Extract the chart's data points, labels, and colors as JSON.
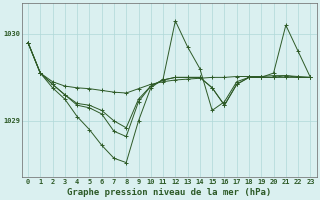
{
  "xlabel": "Graphe pression niveau de la mer (hPa)",
  "x_values": [
    0,
    1,
    2,
    3,
    4,
    5,
    6,
    7,
    8,
    9,
    10,
    11,
    12,
    13,
    14,
    15,
    16,
    17,
    18,
    19,
    20,
    21,
    22,
    23
  ],
  "series": [
    [
      1029.9,
      1029.55,
      1029.45,
      1029.4,
      1029.38,
      1029.37,
      1029.35,
      1029.33,
      1029.32,
      1029.37,
      1029.42,
      1029.45,
      1029.47,
      1029.48,
      1029.49,
      1029.5,
      1029.5,
      1029.51,
      1029.51,
      1029.51,
      1029.52,
      1029.52,
      1029.51,
      1029.5
    ],
    [
      1029.9,
      1029.55,
      1029.38,
      1029.25,
      1029.05,
      1028.9,
      1028.72,
      1028.57,
      1028.52,
      1029.0,
      1029.38,
      1029.48,
      1030.15,
      1029.85,
      1029.6,
      1029.12,
      1029.22,
      1029.45,
      1029.5,
      1029.5,
      1029.55,
      1030.1,
      1029.8,
      1029.5
    ],
    [
      1029.9,
      1029.55,
      1029.42,
      1029.3,
      1029.2,
      1029.18,
      1029.12,
      1029.0,
      1028.92,
      1029.25,
      1029.4,
      1029.47,
      1029.5,
      1029.5,
      1029.5,
      1029.38,
      1029.18,
      1029.42,
      1029.5,
      1029.5,
      1029.5,
      1029.5,
      1029.5,
      1029.5
    ],
    [
      1029.9,
      1029.55,
      1029.42,
      1029.3,
      1029.18,
      1029.15,
      1029.08,
      1028.88,
      1028.82,
      1029.22,
      1029.4,
      1029.47,
      1029.5,
      1029.5,
      1029.5,
      1029.38,
      1029.18,
      1029.42,
      1029.5,
      1029.5,
      1029.5,
      1029.52,
      1029.5,
      1029.5
    ]
  ],
  "line_color": "#2d5a27",
  "marker_color": "#2d5a27",
  "bg_color": "#daf0f0",
  "grid_color": "#b0d8d8",
  "axis_color": "#2d5a27",
  "ylim_min": 1028.35,
  "ylim_max": 1030.35,
  "yticks": [
    1029,
    1030
  ],
  "ytick_labels": [
    "1029",
    "1030"
  ],
  "xticks": [
    0,
    1,
    2,
    3,
    4,
    5,
    6,
    7,
    8,
    9,
    10,
    11,
    12,
    13,
    14,
    15,
    16,
    17,
    18,
    19,
    20,
    21,
    22,
    23
  ],
  "tick_fontsize": 5.0,
  "xlabel_fontsize": 6.5,
  "xlabel_fontweight": "bold"
}
